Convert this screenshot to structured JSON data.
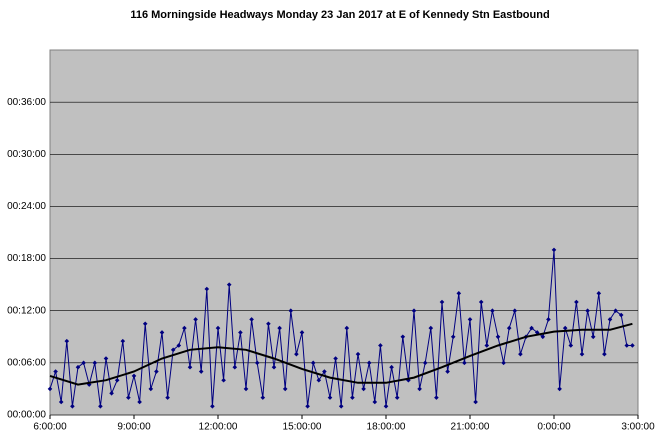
{
  "chart_data": {
    "type": "line",
    "title": "116 Morningside Headways Monday 23 Jan 2017 at E of Kennedy Stn Eastbound",
    "xlim": [
      6,
      27
    ],
    "xticks": [
      {
        "value": 6,
        "label": "6:00:00"
      },
      {
        "value": 9,
        "label": "9:00:00"
      },
      {
        "value": 12,
        "label": "12:00:00"
      },
      {
        "value": 15,
        "label": "15:00:00"
      },
      {
        "value": 18,
        "label": "18:00:00"
      },
      {
        "value": 21,
        "label": "21:00:00"
      },
      {
        "value": 24,
        "label": "0:00:00"
      },
      {
        "value": 27,
        "label": "3:00:00"
      }
    ],
    "ylim": [
      0,
      42
    ],
    "yticks": [
      {
        "value": 0,
        "label": "00:00:00"
      },
      {
        "value": 6,
        "label": "00:06:00"
      },
      {
        "value": 12,
        "label": "00:12:00"
      },
      {
        "value": 18,
        "label": "00:18:00"
      },
      {
        "value": 24,
        "label": "00:24:00"
      },
      {
        "value": 30,
        "label": "00:30:00"
      },
      {
        "value": 36,
        "label": "00:36:00"
      }
    ],
    "grid": true,
    "series": [
      {
        "color": "#000080",
        "x": [
          6.0,
          6.2,
          6.4,
          6.6,
          6.8,
          7.0,
          7.2,
          7.4,
          7.6,
          7.8,
          8.0,
          8.2,
          8.4,
          8.6,
          8.8,
          9.0,
          9.2,
          9.4,
          9.6,
          9.8,
          10.0,
          10.2,
          10.4,
          10.6,
          10.8,
          11.0,
          11.2,
          11.4,
          11.6,
          11.8,
          12.0,
          12.2,
          12.4,
          12.6,
          12.8,
          13.0,
          13.2,
          13.4,
          13.6,
          13.8,
          14.0,
          14.2,
          14.4,
          14.6,
          14.8,
          15.0,
          15.2,
          15.4,
          15.6,
          15.8,
          16.0,
          16.2,
          16.4,
          16.6,
          16.8,
          17.0,
          17.2,
          17.4,
          17.6,
          17.8,
          18.0,
          18.2,
          18.4,
          18.6,
          18.8,
          19.0,
          19.2,
          19.4,
          19.6,
          19.8,
          20.0,
          20.2,
          20.4,
          20.6,
          20.8,
          21.0,
          21.2,
          21.4,
          21.6,
          21.8,
          22.0,
          22.2,
          22.4,
          22.6,
          22.8,
          23.0,
          23.2,
          23.4,
          23.6,
          23.8,
          24.0,
          24.2,
          24.4,
          24.6,
          24.8,
          25.0,
          25.2,
          25.4,
          25.6,
          25.8,
          26.0,
          26.2,
          26.4,
          26.6,
          26.8
        ],
        "values": [
          3,
          5,
          1.5,
          8.5,
          1,
          5.5,
          6,
          3.5,
          6,
          1,
          6.5,
          2.5,
          4,
          8.5,
          2,
          4.5,
          1.5,
          10.5,
          3,
          5,
          9.5,
          2,
          7.5,
          8,
          10,
          5.5,
          11,
          5,
          14.5,
          1,
          10,
          4,
          15,
          5.5,
          9.5,
          3,
          11,
          6,
          2,
          10.5,
          5.5,
          10,
          3,
          12,
          7,
          9.5,
          1,
          6,
          4,
          5,
          2,
          6.5,
          1,
          10,
          2,
          7,
          3,
          6,
          1.5,
          8,
          1,
          5.5,
          2,
          9,
          4,
          12,
          3,
          6,
          10,
          2,
          13,
          5,
          9,
          14,
          6,
          11,
          1.5,
          13,
          8,
          12,
          9,
          6,
          10,
          12,
          7,
          9,
          10,
          9.5,
          9,
          11,
          19,
          3,
          10,
          8,
          13,
          7,
          12,
          9,
          14,
          7,
          11,
          12,
          11.5,
          8,
          8
        ]
      }
    ],
    "trend": {
      "color": "#000000",
      "x": [
        6,
        7,
        8,
        9,
        10,
        11,
        12,
        13,
        14,
        15,
        16,
        17,
        18,
        19,
        20,
        21,
        22,
        23,
        24,
        25,
        26,
        26.8
      ],
      "values": [
        4.5,
        3.5,
        4,
        5,
        6.5,
        7.5,
        7.8,
        7.5,
        6.5,
        5.3,
        4.3,
        3.7,
        3.7,
        4.3,
        5.5,
        6.8,
        8,
        9,
        9.6,
        9.8,
        9.8,
        10.5
      ]
    }
  }
}
